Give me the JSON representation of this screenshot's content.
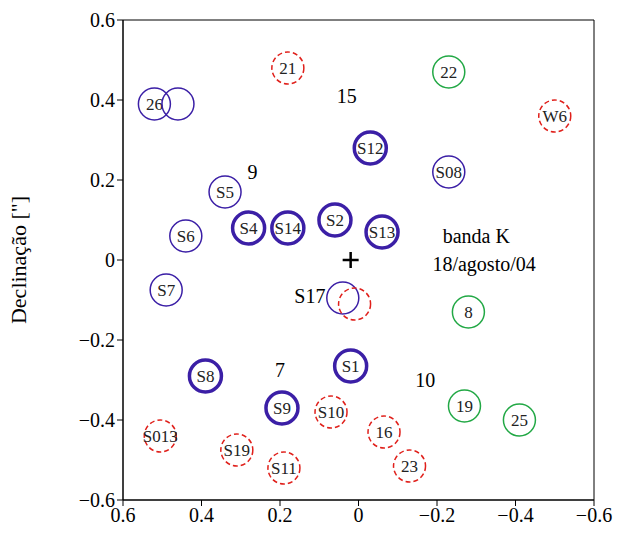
{
  "chart_data": {
    "type": "scatter",
    "y_label": "Declinação [\"]",
    "xlim": [
      0.6,
      -0.6
    ],
    "ylim": [
      -0.6,
      0.6
    ],
    "xticks": [
      0.6,
      0.4,
      0.2,
      0,
      {
        "value": -0.2,
        "label": "−0.2"
      },
      {
        "value": -0.4,
        "label": "−0.4"
      },
      {
        "value": -0.6,
        "label": "−0.6"
      }
    ],
    "yticks": [
      {
        "value": -0.6,
        "label": "−0.6"
      },
      {
        "value": -0.4,
        "label": "−0.4"
      },
      {
        "value": -0.2,
        "label": "−0.2"
      },
      0,
      0.2,
      0.4,
      0.6
    ],
    "grid": false,
    "series": [
      {
        "color": "#3b1fa6",
        "line_style": "solid",
        "marker": "circle_bold",
        "points": [
          {
            "x": -0.03,
            "y": 0.28,
            "label": "S12"
          },
          {
            "x": 0.28,
            "y": 0.08,
            "label": "S4"
          },
          {
            "x": 0.18,
            "y": 0.08,
            "label": "S14"
          },
          {
            "x": 0.06,
            "y": 0.1,
            "label": "S2"
          },
          {
            "x": -0.06,
            "y": 0.07,
            "label": "S13"
          },
          {
            "x": 0.02,
            "y": -0.265,
            "label": "S1"
          },
          {
            "x": 0.39,
            "y": -0.29,
            "label": "S8"
          },
          {
            "x": 0.195,
            "y": -0.37,
            "label": "S9"
          }
        ]
      },
      {
        "color": "#3b1fa6",
        "line_style": "solid",
        "marker": "circle",
        "points": [
          {
            "x": 0.52,
            "y": 0.39,
            "label": "26"
          },
          {
            "x": 0.46,
            "y": 0.39,
            "label": null
          },
          {
            "x": -0.23,
            "y": 0.22,
            "label": "S08"
          },
          {
            "x": 0.34,
            "y": 0.17,
            "label": "S5"
          },
          {
            "x": 0.44,
            "y": 0.06,
            "label": "S6"
          },
          {
            "x": 0.49,
            "y": -0.075,
            "label": "S7"
          },
          {
            "x": 0.04,
            "y": -0.095,
            "label": null
          }
        ]
      },
      {
        "color": "#e0201b",
        "line_style": "dashed",
        "marker": "circle",
        "points": [
          {
            "x": 0.18,
            "y": 0.48,
            "label": "21"
          },
          {
            "x": -0.5,
            "y": 0.36,
            "label": "W6"
          },
          {
            "x": 0.01,
            "y": -0.11,
            "label": null
          },
          {
            "x": 0.07,
            "y": -0.38,
            "label": "S10"
          },
          {
            "x": 0.505,
            "y": -0.44,
            "label": "S013"
          },
          {
            "x": -0.065,
            "y": -0.43,
            "label": "16"
          },
          {
            "x": 0.31,
            "y": -0.475,
            "label": "S19"
          },
          {
            "x": -0.13,
            "y": -0.515,
            "label": "23"
          },
          {
            "x": 0.19,
            "y": -0.52,
            "label": "S11"
          }
        ]
      },
      {
        "color": "#22a845",
        "line_style": "solid",
        "marker": "circle",
        "points": [
          {
            "x": -0.23,
            "y": 0.47,
            "label": "22"
          },
          {
            "x": -0.28,
            "y": -0.13,
            "label": "8"
          },
          {
            "x": -0.27,
            "y": -0.365,
            "label": "19"
          },
          {
            "x": -0.41,
            "y": -0.4,
            "label": "25"
          }
        ]
      },
      {
        "color": "#000000",
        "marker": "plus",
        "points": [
          {
            "x": 0.02,
            "y": 0,
            "label": null
          }
        ]
      }
    ],
    "annotations": [
      {
        "text": "15",
        "x": 0.03,
        "y": 0.41
      },
      {
        "text": "9",
        "x": 0.27,
        "y": 0.22
      },
      {
        "text": "7",
        "x": 0.2,
        "y": -0.275
      },
      {
        "text": "10",
        "x": -0.17,
        "y": -0.3
      },
      {
        "text": "S17",
        "x": 0.124,
        "y": -0.09
      },
      {
        "text": "banda K",
        "x": -0.3,
        "y": 0.06
      },
      {
        "text": "18/agosto/04",
        "x": -0.32,
        "y": -0.01
      }
    ]
  }
}
